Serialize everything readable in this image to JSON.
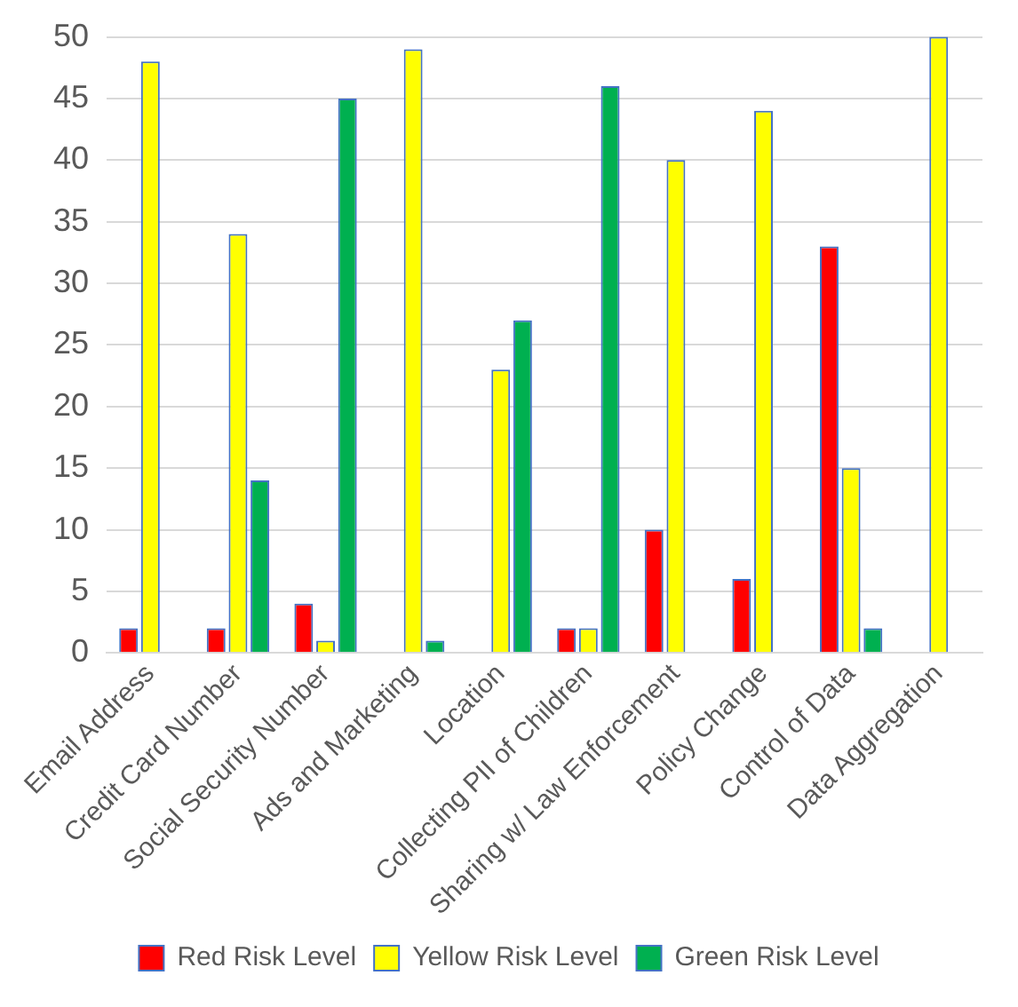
{
  "chart_data": {
    "type": "bar",
    "categories": [
      "Email Address",
      "Credit Card Number",
      "Social Security Number",
      "Ads and Marketing",
      "Location",
      "Collecting PII of Children",
      "Sharing w/ Law Enforcement",
      "Policy Change",
      "Control of Data",
      "Data Aggregation"
    ],
    "series": [
      {
        "name": "Red Risk Level",
        "color": "#ff0000",
        "values": [
          2,
          2,
          4,
          0,
          0,
          2,
          10,
          6,
          33,
          0
        ]
      },
      {
        "name": "Yellow Risk Level",
        "color": "#ffff00",
        "values": [
          48,
          34,
          1,
          49,
          23,
          2,
          40,
          44,
          15,
          50
        ]
      },
      {
        "name": "Green Risk Level",
        "color": "#00b050",
        "values": [
          0,
          14,
          45,
          1,
          27,
          46,
          0,
          0,
          2,
          0
        ]
      }
    ],
    "ylim": [
      0,
      50
    ],
    "yticks": [
      0,
      5,
      10,
      15,
      20,
      25,
      30,
      35,
      40,
      45,
      50
    ],
    "grid": "y",
    "legend": "bottom"
  }
}
